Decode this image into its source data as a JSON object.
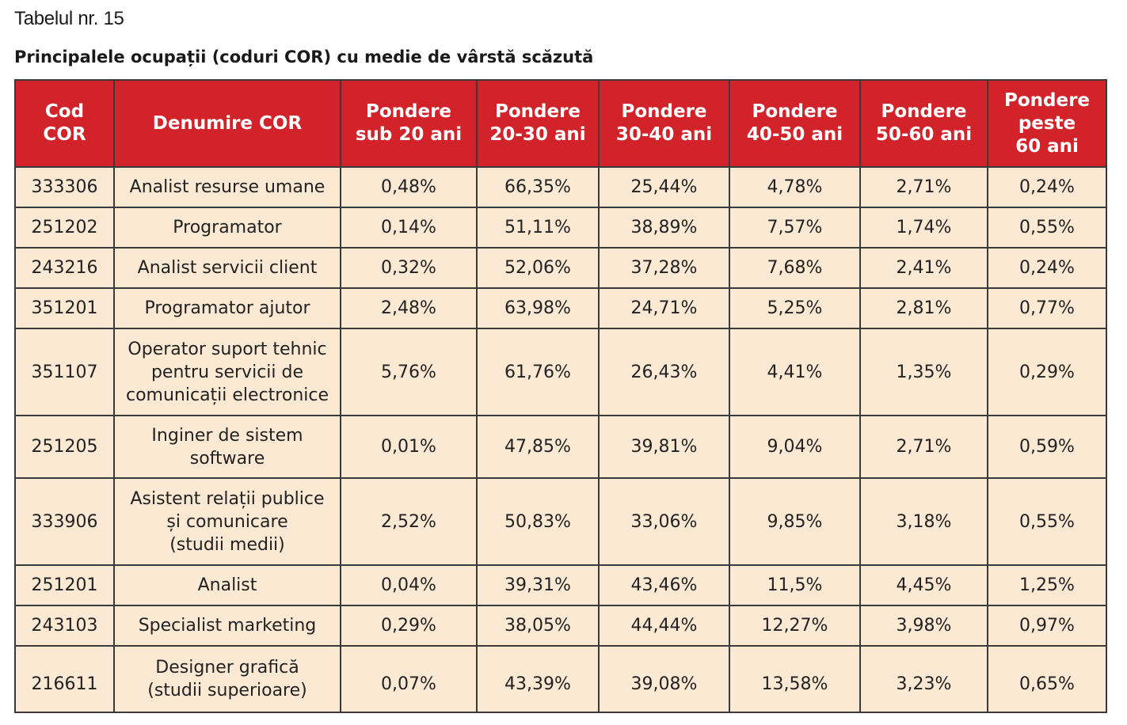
{
  "document": {
    "table_label": "Tabelul nr. 15",
    "title": "Principalele ocupații (coduri COR) cu medie de vârstă scăzută"
  },
  "colors": {
    "header_background": "#d2232a",
    "header_text": "#ffffff",
    "cell_background": "#fbe9d3",
    "border": "#3a3a3a"
  },
  "table": {
    "headers": [
      "Cod COR",
      "Denumire COR",
      "Pondere sub 20 ani",
      "Pondere 20-30 ani",
      "Pondere 30-40 ani",
      "Pondere 40-50 ani",
      "Pondere 50-60 ani",
      "Pondere peste 60 ani"
    ],
    "rows": [
      {
        "cod": "333306",
        "name": [
          "Analist resurse umane"
        ],
        "v1": "0,48%",
        "v2": "66,35%",
        "v3": "25,44%",
        "v4": "4,78%",
        "v5": "2,71%",
        "v6": "0,24%"
      },
      {
        "cod": "251202",
        "name": [
          "Programator"
        ],
        "v1": "0,14%",
        "v2": "51,11%",
        "v3": "38,89%",
        "v4": "7,57%",
        "v5": "1,74%",
        "v6": "0,55%"
      },
      {
        "cod": "243216",
        "name": [
          "Analist servicii client"
        ],
        "v1": "0,32%",
        "v2": "52,06%",
        "v3": "37,28%",
        "v4": "7,68%",
        "v5": "2,41%",
        "v6": "0,24%"
      },
      {
        "cod": "351201",
        "name": [
          "Programator ajutor"
        ],
        "v1": "2,48%",
        "v2": "63,98%",
        "v3": "24,71%",
        "v4": "5,25%",
        "v5": "2,81%",
        "v6": "0,77%"
      },
      {
        "cod": "351107",
        "name": [
          "Operator suport tehnic",
          "pentru servicii de",
          "comunicații electronice"
        ],
        "v1": "5,76%",
        "v2": "61,76%",
        "v3": "26,43%",
        "v4": "4,41%",
        "v5": "1,35%",
        "v6": "0,29%"
      },
      {
        "cod": "251205",
        "name": [
          "Inginer de sistem",
          "software"
        ],
        "v1": "0,01%",
        "v2": "47,85%",
        "v3": "39,81%",
        "v4": "9,04%",
        "v5": "2,71%",
        "v6": "0,59%"
      },
      {
        "cod": "333906",
        "name": [
          "Asistent relații publice",
          "și comunicare",
          "(studii medii)"
        ],
        "v1": "2,52%",
        "v2": "50,83%",
        "v3": "33,06%",
        "v4": "9,85%",
        "v5": "3,18%",
        "v6": "0,55%"
      },
      {
        "cod": "251201",
        "name": [
          "Analist"
        ],
        "v1": "0,04%",
        "v2": "39,31%",
        "v3": "43,46%",
        "v4": "11,5%",
        "v5": "4,45%",
        "v6": "1,25%"
      },
      {
        "cod": "243103",
        "name": [
          "Specialist marketing"
        ],
        "v1": "0,29%",
        "v2": "38,05%",
        "v3": "44,44%",
        "v4": "12,27%",
        "v5": "3,98%",
        "v6": "0,97%"
      },
      {
        "cod": "216611",
        "name": [
          "Designer grafică",
          "(studii superioare)"
        ],
        "v1": "0,07%",
        "v2": "43,39%",
        "v3": "39,08%",
        "v4": "13,58%",
        "v5": "3,23%",
        "v6": "0,65%"
      }
    ]
  }
}
